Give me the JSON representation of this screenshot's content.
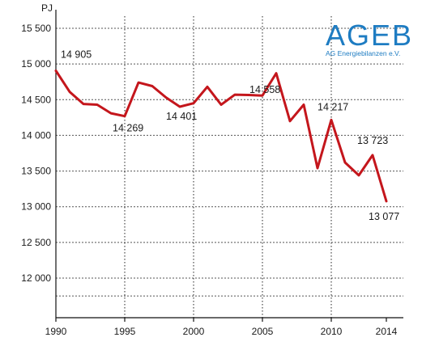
{
  "logo": {
    "name": "AGEB",
    "subtitle": "AG Energiebilanzen e.V."
  },
  "chart_data": {
    "type": "line",
    "unit_label": "PJ",
    "x": [
      1990,
      1991,
      1992,
      1993,
      1994,
      1995,
      1996,
      1997,
      1998,
      1999,
      2000,
      2001,
      2002,
      2003,
      2004,
      2005,
      2006,
      2007,
      2008,
      2009,
      2010,
      2011,
      2012,
      2013,
      2014
    ],
    "series": [
      {
        "values": [
          14905,
          14610,
          14440,
          14430,
          14310,
          14269,
          14740,
          14690,
          14530,
          14401,
          14450,
          14680,
          14430,
          14570,
          14565,
          14558,
          14870,
          14200,
          14430,
          13540,
          14217,
          13620,
          13440,
          13723,
          13077
        ]
      }
    ],
    "xlim": [
      1990,
      2014.8
    ],
    "ylim": [
      11600,
      15650
    ],
    "y_ticks": [
      12000,
      12500,
      13000,
      13500,
      14000,
      14500,
      15000,
      15500
    ],
    "y_tick_labels": [
      "12 000",
      "12 500",
      "13 000",
      "13 500",
      "14 000",
      "14 500",
      "15 000",
      "15 500"
    ],
    "x_ticks": [
      1990,
      1995,
      2000,
      2005,
      2010,
      2014
    ],
    "x_tick_labels": [
      "1990",
      "1995",
      "2000",
      "2005",
      "2010",
      "2014"
    ],
    "annotations": [
      {
        "x": 1990,
        "y": 14905,
        "text": "14 905"
      },
      {
        "x": 1995,
        "y": 14269,
        "text": "14 269"
      },
      {
        "x": 1999,
        "y": 14401,
        "text": "14 401"
      },
      {
        "x": 2005,
        "y": 14558,
        "text": "14 558"
      },
      {
        "x": 2010,
        "y": 14217,
        "text": "14 217"
      },
      {
        "x": 2013,
        "y": 13723,
        "text": "13 723"
      },
      {
        "x": 2014,
        "y": 13077,
        "text": "13 077"
      }
    ],
    "grid": true,
    "line_color": "#c4161c"
  }
}
